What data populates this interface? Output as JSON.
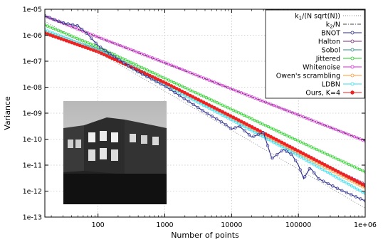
{
  "chart_data": {
    "type": "line",
    "title": "",
    "xlabel": "Number of points",
    "ylabel": "Variance",
    "xscale": "log",
    "yscale": "log",
    "xlim": [
      16,
      1000000
    ],
    "ylim": [
      1e-13,
      1e-05
    ],
    "x_ticks": [
      {
        "value": 100,
        "label": "100"
      },
      {
        "value": 1000,
        "label": "1000"
      },
      {
        "value": 10000,
        "label": "10000"
      },
      {
        "value": 100000,
        "label": "100000"
      },
      {
        "value": 1000000,
        "label": "1e+06"
      }
    ],
    "y_ticks": [
      {
        "value": 1e-05,
        "label": "1e-05"
      },
      {
        "value": 1e-06,
        "label": "1e-06"
      },
      {
        "value": 1e-07,
        "label": "1e-07"
      },
      {
        "value": 1e-08,
        "label": "1e-08"
      },
      {
        "value": 1e-09,
        "label": "1e-09"
      },
      {
        "value": 1e-10,
        "label": "1e-10"
      },
      {
        "value": 1e-11,
        "label": "1e-11"
      },
      {
        "value": 1e-12,
        "label": "1e-12"
      },
      {
        "value": 1e-13,
        "label": "1e-13"
      }
    ],
    "grid": true,
    "legend_position": "top-right",
    "inset_image": "grayscale street photograph",
    "series": [
      {
        "name": "k1/(N sqrt(N))",
        "label_base": "k",
        "label_sub": "1",
        "label_rest": "/(N sqrt(N))",
        "style": "dotted",
        "marker": "none",
        "color": "#888888",
        "x": [
          16,
          1000000
        ],
        "y": [
          3.5e-06,
          2.2e-13
        ]
      },
      {
        "name": "k2/N",
        "label_base": "k",
        "label_sub": "2",
        "label_rest": "/N",
        "style": "dashdot",
        "marker": "none",
        "color": "#444444",
        "x": [
          16,
          1000000
        ],
        "y": [
          5.3e-06,
          8.5e-11
        ]
      },
      {
        "name": "BNOT",
        "style": "solid",
        "marker": "circle",
        "color": "#2a2a8a",
        "x": [
          16,
          30,
          50,
          70,
          100,
          200,
          400,
          1000,
          2000,
          4000,
          8000,
          10000,
          13000,
          20000,
          30000,
          40000,
          60000,
          80000,
          100000,
          120000,
          150000,
          200000,
          400000,
          1000000
        ],
        "y": [
          5.6e-06,
          3e-06,
          2.3e-06,
          1.1e-06,
          4e-07,
          1.2e-07,
          3.8e-08,
          1.1e-08,
          3.5e-09,
          1.1e-09,
          3.8e-10,
          2.4e-10,
          3.2e-10,
          1.2e-10,
          1.8e-10,
          1.8e-11,
          4e-11,
          2.5e-11,
          1e-11,
          3e-12,
          8e-12,
          3e-12,
          1.2e-12,
          4.2e-13
        ]
      },
      {
        "name": "Halton",
        "style": "solid",
        "marker": "circle",
        "color": "#7a2a7a",
        "x": [
          16,
          100,
          1000,
          10000,
          100000,
          1000000
        ],
        "y": [
          1.3e-06,
          2.6e-07,
          1.4e-08,
          6.5e-10,
          3e-11,
          1.8e-12
        ]
      },
      {
        "name": "Sobol",
        "style": "solid",
        "marker": "circle",
        "color": "#2a8a8a",
        "x": [
          16,
          100,
          1000,
          10000,
          100000,
          1000000
        ],
        "y": [
          1.4e-06,
          2.8e-07,
          1.5e-08,
          7e-10,
          3.2e-11,
          1.5e-12
        ]
      },
      {
        "name": "Jittered",
        "style": "solid",
        "marker": "circle",
        "color": "#22cc22",
        "x": [
          16,
          100,
          1000,
          10000,
          100000,
          1000000
        ],
        "y": [
          2.5e-06,
          3.5e-07,
          2.2e-08,
          1.4e-09,
          8.5e-11,
          5.5e-12
        ]
      },
      {
        "name": "Whitenoise",
        "style": "solid",
        "marker": "circle",
        "color": "#dd22dd",
        "x": [
          16,
          100,
          1000,
          10000,
          100000,
          1000000
        ],
        "y": [
          5.5e-06,
          8.5e-07,
          8.8e-08,
          8.5e-09,
          8.5e-10,
          8.5e-11
        ]
      },
      {
        "name": "Owen's scrambling",
        "style": "solid",
        "marker": "circle",
        "color": "#ff9933",
        "x": [
          16,
          100,
          1000,
          10000,
          100000,
          1000000
        ],
        "y": [
          1.4e-06,
          2.5e-07,
          1.3e-08,
          6.2e-10,
          2.8e-11,
          1.3e-12
        ]
      },
      {
        "name": "LDBN",
        "style": "solid",
        "marker": "circle",
        "color": "#33ddee",
        "x": [
          16,
          100,
          1000,
          10000,
          100000,
          1000000
        ],
        "y": [
          1.6e-06,
          2.6e-07,
          1.2e-08,
          5.5e-10,
          2.3e-11,
          8e-13
        ]
      },
      {
        "name": "Ours, K=4",
        "style": "solid",
        "marker": "filled-circle",
        "color": "#ee2222",
        "x": [
          16,
          100,
          1000,
          10000,
          100000,
          1000000
        ],
        "y": [
          1.2e-06,
          2.3e-07,
          1.5e-08,
          7.5e-10,
          3.5e-11,
          1.6e-12
        ]
      }
    ]
  }
}
